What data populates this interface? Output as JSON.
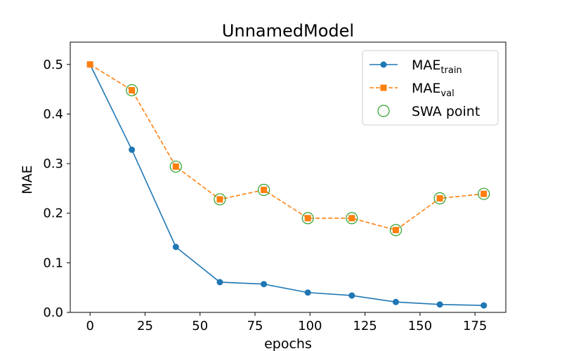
{
  "chart_data": {
    "type": "line",
    "title": "UnnamedModel",
    "xlabel": "epochs",
    "ylabel": "MAE",
    "xlim": [
      -9,
      189
    ],
    "ylim": [
      0,
      0.545
    ],
    "xticks": [
      0,
      25,
      50,
      75,
      100,
      125,
      150,
      175
    ],
    "yticks": [
      0.0,
      0.1,
      0.2,
      0.3,
      0.4,
      0.5
    ],
    "xtick_labels": [
      "0",
      "25",
      "50",
      "75",
      "100",
      "125",
      "150",
      "175"
    ],
    "ytick_labels": [
      "0.0",
      "0.1",
      "0.2",
      "0.3",
      "0.4",
      "0.5"
    ],
    "grid": false,
    "legend_position": "top-right",
    "x": [
      0,
      19,
      39,
      59,
      79,
      99,
      119,
      139,
      159,
      179
    ],
    "series": [
      {
        "name_main": "MAE",
        "name_sub": "train",
        "color": "#1f77b4",
        "marker": "circle",
        "linestyle": "solid",
        "values": [
          0.5,
          0.328,
          0.132,
          0.061,
          0.057,
          0.04,
          0.034,
          0.021,
          0.016,
          0.014
        ]
      },
      {
        "name_main": "MAE",
        "name_sub": "val",
        "color": "#ff7f0e",
        "marker": "square",
        "linestyle": "dashed",
        "values": [
          0.5,
          0.448,
          0.294,
          0.228,
          0.247,
          0.19,
          0.19,
          0.166,
          0.23,
          0.239
        ]
      }
    ],
    "swa_points": {
      "name": "SWA point",
      "color": "#2ca02c",
      "marker": "open-circle",
      "x": [
        19,
        39,
        59,
        79,
        99,
        119,
        139,
        159,
        179
      ],
      "y": [
        0.448,
        0.294,
        0.228,
        0.247,
        0.19,
        0.19,
        0.166,
        0.23,
        0.239
      ]
    }
  }
}
